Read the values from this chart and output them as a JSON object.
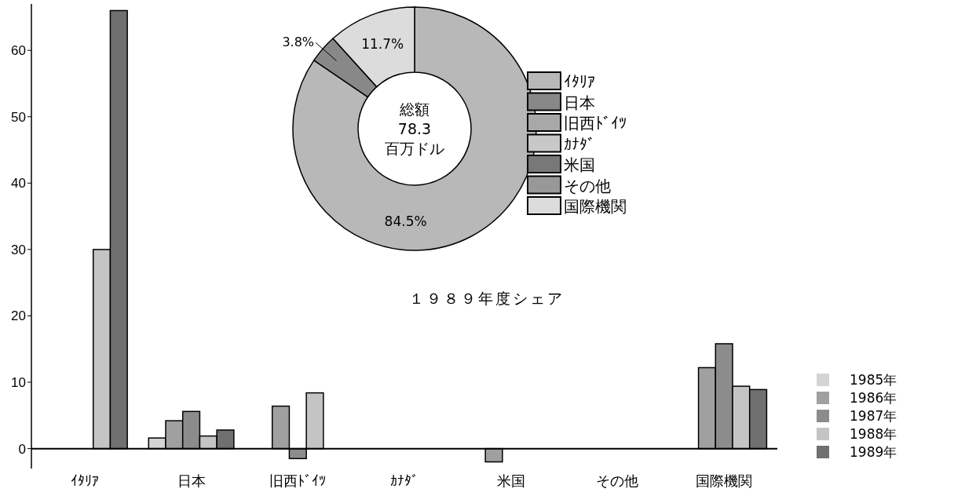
{
  "chart_data": [
    {
      "type": "bar",
      "categories": [
        "ｲﾀﾘｱ",
        "日本",
        "旧西ﾄﾞｲﾂ",
        "ｶﾅﾀﾞ",
        "米国",
        "その他",
        "国際機関"
      ],
      "series": [
        {
          "name": "1985年",
          "color": "#d4d4d4",
          "values": [
            null,
            1.6,
            null,
            null,
            null,
            null,
            null
          ]
        },
        {
          "name": "1986年",
          "color": "#a0a0a0",
          "values": [
            null,
            4.2,
            6.4,
            null,
            -2.0,
            null,
            12.2
          ]
        },
        {
          "name": "1987年",
          "color": "#8c8c8c",
          "values": [
            null,
            5.6,
            -1.5,
            null,
            null,
            null,
            15.8
          ]
        },
        {
          "name": "1988年",
          "color": "#c4c4c4",
          "values": [
            30,
            1.9,
            8.4,
            null,
            null,
            null,
            9.4
          ]
        },
        {
          "name": "1989年",
          "color": "#707070",
          "values": [
            66,
            2.8,
            null,
            null,
            null,
            null,
            8.9
          ]
        }
      ],
      "ylim": [
        -3,
        67
      ],
      "yticks": [
        0,
        10,
        20,
        30,
        40,
        50,
        60
      ],
      "grid": false,
      "legend": "right"
    },
    {
      "type": "donut",
      "title": "１９８９年度シェア",
      "categories": [
        "ｲﾀﾘｱ",
        "日本",
        "旧西ﾄﾞｲﾂ",
        "ｶﾅﾀﾞ",
        "米国",
        "その他",
        "国際機関"
      ],
      "values": [
        84.5,
        3.8,
        0,
        0,
        0,
        0,
        11.7
      ],
      "colors": [
        "#b8b8b8",
        "#888888",
        "#a8a8a8",
        "#c8c8c8",
        "#787878",
        "#989898",
        "#dcdcdc"
      ],
      "value_labels": [
        "84.5%",
        "3.8%",
        null,
        null,
        null,
        null,
        "11.7%"
      ],
      "annotations": [
        "総額",
        "78.3",
        "百万ドル"
      ],
      "legend": "right"
    }
  ]
}
